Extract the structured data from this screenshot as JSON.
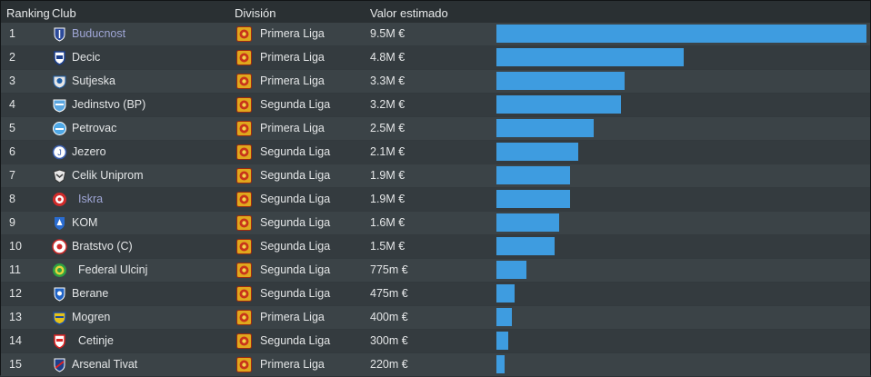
{
  "header": {
    "ranking": "Ranking",
    "club": "Club",
    "division": "División",
    "value": "Valor estimado"
  },
  "rows": [
    {
      "rank": "1",
      "club": "Buducnost",
      "division": "Primera Liga",
      "value": "9.5M €",
      "amount": 9500000,
      "crest": "buducnost-crest",
      "link": true
    },
    {
      "rank": "2",
      "club": "Decic",
      "division": "Primera Liga",
      "value": "4.8M €",
      "amount": 4800000,
      "crest": "decic-crest"
    },
    {
      "rank": "3",
      "club": "Sutjeska",
      "division": "Primera Liga",
      "value": "3.3M €",
      "amount": 3300000,
      "crest": "sutjeska-crest"
    },
    {
      "rank": "4",
      "club": "Jedinstvo (BP)",
      "division": "Segunda Liga",
      "value": "3.2M €",
      "amount": 3200000,
      "crest": "jedinstvo-crest"
    },
    {
      "rank": "5",
      "club": "Petrovac",
      "division": "Primera Liga",
      "value": "2.5M €",
      "amount": 2500000,
      "crest": "petrovac-crest"
    },
    {
      "rank": "6",
      "club": "Jezero",
      "division": "Segunda Liga",
      "value": "2.1M €",
      "amount": 2100000,
      "crest": "jezero-crest"
    },
    {
      "rank": "7",
      "club": "Celik Uniprom",
      "division": "Segunda Liga",
      "value": "1.9M €",
      "amount": 1900000,
      "crest": "celik-crest"
    },
    {
      "rank": "8",
      "club": "Iskra",
      "division": "Segunda Liga",
      "value": "1.9M €",
      "amount": 1880000,
      "crest": "iskra-crest",
      "link": true,
      "indent": true
    },
    {
      "rank": "9",
      "club": "KOM",
      "division": "Segunda Liga",
      "value": "1.6M €",
      "amount": 1600000,
      "crest": "kom-crest"
    },
    {
      "rank": "10",
      "club": "Bratstvo (C)",
      "division": "Segunda Liga",
      "value": "1.5M €",
      "amount": 1500000,
      "crest": "bratstvo-crest"
    },
    {
      "rank": "11",
      "club": "Federal Ulcinj",
      "division": "Segunda Liga",
      "value": "775m €",
      "amount": 775000,
      "crest": "federal-crest",
      "indent": true
    },
    {
      "rank": "12",
      "club": "Berane",
      "division": "Segunda Liga",
      "value": "475m €",
      "amount": 475000,
      "crest": "berane-crest"
    },
    {
      "rank": "13",
      "club": "Mogren",
      "division": "Primera Liga",
      "value": "400m €",
      "amount": 400000,
      "crest": "mogren-crest"
    },
    {
      "rank": "14",
      "club": "Cetinje",
      "division": "Segunda Liga",
      "value": "300m €",
      "amount": 300000,
      "crest": "cetinje-crest",
      "indent": true
    },
    {
      "rank": "15",
      "club": "Arsenal Tivat",
      "division": "Primera Liga",
      "value": "220m €",
      "amount": 220000,
      "crest": "arsenal-crest"
    }
  ],
  "colors": {
    "bar": "#3e9ce0",
    "link": "#9fa6d6",
    "division_icon": "#e0a81d"
  }
}
